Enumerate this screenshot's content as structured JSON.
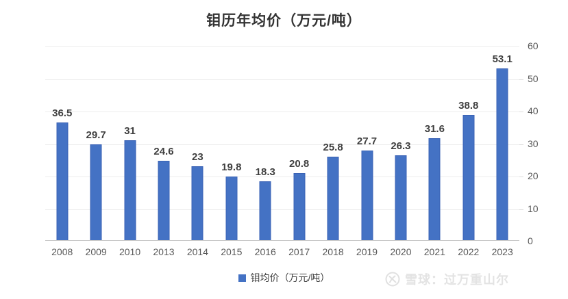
{
  "chart_data": {
    "type": "bar",
    "title": "钼历年均价（万元/吨）",
    "categories": [
      "2008",
      "2009",
      "2010",
      "2013",
      "2014",
      "2015",
      "2016",
      "2017",
      "2018",
      "2019",
      "2020",
      "2021",
      "2022",
      "2023"
    ],
    "values": [
      36.5,
      29.7,
      31,
      24.6,
      23,
      19.8,
      18.3,
      20.8,
      25.8,
      27.7,
      26.3,
      31.6,
      38.8,
      53.1
    ],
    "value_labels": [
      "36.5",
      "29.7",
      "31",
      "24.6",
      "23",
      "19.8",
      "18.3",
      "20.8",
      "25.8",
      "27.7",
      "26.3",
      "31.6",
      "38.8",
      "53.1"
    ],
    "ylim": [
      0,
      60
    ],
    "yticks": [
      0,
      10,
      20,
      30,
      40,
      50,
      60
    ],
    "y_axis_side": "right",
    "grid": true,
    "legend_position": "bottom",
    "bar_color": "#4472c4",
    "bar_border_color": "#3a62b5"
  },
  "legend": {
    "label": "钼均价（万元/吨）",
    "color": "#4472c4"
  },
  "watermark": {
    "brand": "雪球",
    "username": "过万重山尔",
    "text": "雪球：过万重山尔"
  },
  "colors": {
    "title": "#333333",
    "data_label": "#404040",
    "axis_label": "#595959",
    "gridline": "#ececec",
    "watermark": "#e3e3e3"
  }
}
